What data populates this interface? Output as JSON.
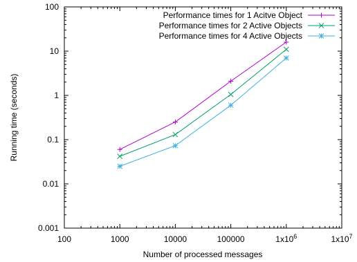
{
  "chart_data": {
    "type": "line",
    "title": "",
    "xlabel": "Number of processed messages",
    "ylabel": "Running time (seconds)",
    "x_scale": "log",
    "y_scale": "log",
    "xlim": [
      100,
      10000000
    ],
    "ylim": [
      0.001,
      100
    ],
    "x_ticks": [
      {
        "value": 100,
        "label": "100"
      },
      {
        "value": 1000,
        "label": "1000"
      },
      {
        "value": 10000,
        "label": "10000"
      },
      {
        "value": 100000,
        "label": "100000"
      },
      {
        "value": 1000000,
        "label_base": "1x10",
        "label_exp": "6"
      },
      {
        "value": 10000000,
        "label_base": "1x10",
        "label_exp": "7"
      }
    ],
    "y_ticks": [
      {
        "value": 0.001,
        "label": "0.001"
      },
      {
        "value": 0.01,
        "label": "0.01"
      },
      {
        "value": 0.1,
        "label": "0.1"
      },
      {
        "value": 1,
        "label": "1"
      },
      {
        "value": 10,
        "label": "10"
      },
      {
        "value": 100,
        "label": "100"
      }
    ],
    "grid": false,
    "legend_position": "top-right",
    "series": [
      {
        "name": "Performance times for 1 Acitve Object",
        "color": "#b000d0",
        "marker": "plus",
        "points": [
          {
            "x": 1000,
            "y": 0.06
          },
          {
            "x": 10000,
            "y": 0.25
          },
          {
            "x": 100000,
            "y": 2.1
          },
          {
            "x": 1000000,
            "y": 16
          }
        ]
      },
      {
        "name": "Performance times for 2 Active Objects",
        "color": "#00a060",
        "marker": "cross",
        "points": [
          {
            "x": 1000,
            "y": 0.042
          },
          {
            "x": 10000,
            "y": 0.13
          },
          {
            "x": 100000,
            "y": 1.05
          },
          {
            "x": 1000000,
            "y": 11
          }
        ]
      },
      {
        "name": "Performance times for 4 Active Objects",
        "color": "#40b0e0",
        "marker": "star",
        "points": [
          {
            "x": 1000,
            "y": 0.025
          },
          {
            "x": 10000,
            "y": 0.073
          },
          {
            "x": 100000,
            "y": 0.6
          },
          {
            "x": 1000000,
            "y": 7
          }
        ]
      }
    ]
  }
}
